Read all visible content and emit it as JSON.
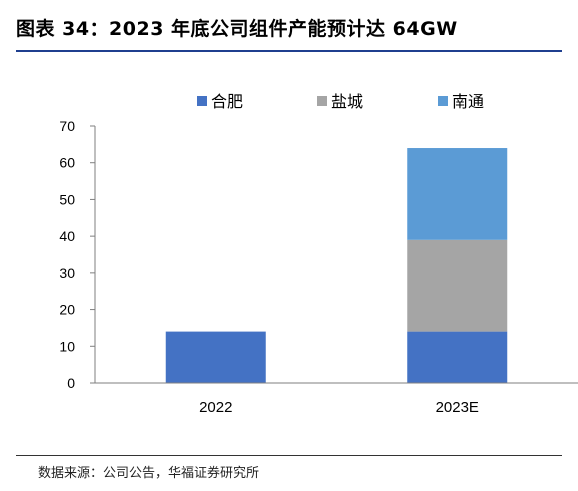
{
  "header": {
    "title": "图表 34：2023 年底公司组件产能预计达 64GW"
  },
  "footer": {
    "source": "数据来源：公司公告，华福证券研究所"
  },
  "colors": {
    "合肥": "#4472c4",
    "盐城": "#a5a5a5",
    "南通": "#5b9bd5",
    "title_rule": "#1f3f8f"
  },
  "chart_data": {
    "type": "bar",
    "stacked": true,
    "categories": [
      "2022",
      "2023E"
    ],
    "series": [
      {
        "name": "合肥",
        "values": [
          14,
          14
        ]
      },
      {
        "name": "盐城",
        "values": [
          0,
          25
        ]
      },
      {
        "name": "南通",
        "values": [
          0,
          25
        ]
      }
    ],
    "ylim": [
      0,
      70
    ],
    "yticks": [
      0,
      10,
      20,
      30,
      40,
      50,
      60,
      70
    ],
    "grid": false,
    "legend": "top-center"
  }
}
